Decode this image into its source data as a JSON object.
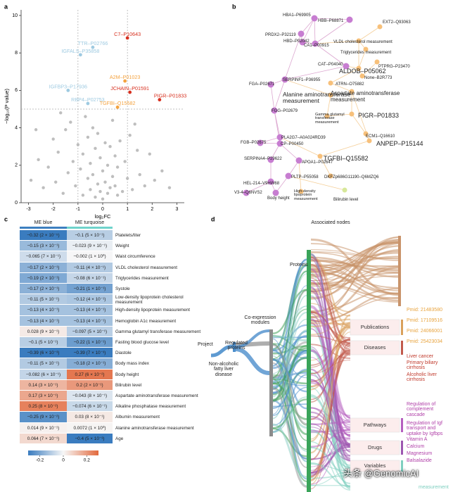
{
  "panel_labels": [
    "a",
    "b",
    "c",
    "d"
  ],
  "chart_data": [
    {
      "type": "scatter",
      "xlabel": "log₂FC",
      "ylabel": "−log₁₀(P value)",
      "xlim": [
        -3.3,
        3.3
      ],
      "ylim": [
        0,
        10.3
      ],
      "xticks": [
        -3,
        -2,
        -1,
        0,
        1,
        2,
        3
      ],
      "yticks": [
        0,
        2,
        4,
        6,
        8,
        10
      ],
      "vlines": [
        -1,
        1
      ],
      "hline": 5.0,
      "series": [
        {
          "color": "#b3b3b3",
          "x": [
            -2.9,
            -2.6,
            -2.4,
            -2.2,
            -2.0,
            -1.9,
            -1.8,
            -1.6,
            -1.5,
            -1.4,
            -1.3,
            -1.2,
            -1.1,
            -1.0,
            -0.9,
            -0.8,
            -0.8,
            -0.7,
            -0.6,
            -0.6,
            -0.5,
            -0.5,
            -0.4,
            -0.4,
            -0.3,
            -0.3,
            -0.2,
            -0.2,
            -0.1,
            -0.1,
            0,
            0,
            0.1,
            0.1,
            0.2,
            0.2,
            0.3,
            0.3,
            0.4,
            0.4,
            0.5,
            0.5,
            0.6,
            0.7,
            0.8,
            0.9,
            1.0,
            1.1,
            1.2,
            1.4,
            1.5,
            1.7,
            1.9,
            2.1,
            2.4,
            2.7,
            -2.7,
            -1.7,
            1.3,
            0.6
          ],
          "values": [
            1.2,
            2.3,
            0.8,
            1.9,
            3.4,
            1.1,
            2.7,
            0.5,
            3.9,
            1.6,
            4.3,
            2.2,
            0.9,
            3.1,
            1.8,
            0.4,
            2.6,
            4.6,
            1.3,
            3.5,
            0.7,
            2.1,
            4.0,
            1.5,
            0.3,
            2.9,
            1.0,
            3.7,
            0.6,
            2.4,
            1.7,
            0.2,
            3.2,
            1.1,
            0.5,
            2.0,
            3.0,
            0.8,
            1.4,
            4.4,
            2.5,
            0.9,
            1.9,
            3.3,
            0.6,
            2.2,
            1.3,
            3.6,
            0.7,
            2.8,
            1.5,
            0.9,
            2.6,
            1.2,
            1.7,
            0.8,
            3.9,
            4.8,
            4.2,
            0.4
          ]
        },
        {
          "labels": [
            "C7–P10643",
            "TTR–P02766",
            "IGFALS–P35858",
            "A2M–P01023",
            "IGFBP3–P17936",
            "JCHAIN–P01591",
            "RBP4–P02753",
            "PIGR–P01833",
            "TGFBI–Q15582"
          ],
          "colors": [
            "#d7301f",
            "#9ecae1",
            "#9ecae1",
            "#f4a340",
            "#9ecae1",
            "#d7301f",
            "#9ecae1",
            "#d7301f",
            "#f4a340"
          ],
          "x": [
            1.0,
            -0.4,
            -0.9,
            0.9,
            -1.4,
            1.1,
            -0.6,
            2.3,
            0.6
          ],
          "values": [
            8.8,
            8.3,
            7.9,
            6.5,
            6.0,
            5.9,
            5.3,
            5.5,
            5.1
          ]
        }
      ]
    },
    {
      "type": "heatmap",
      "categories": [
        "Platelets/liter",
        "Weight",
        "Waist circumference",
        "VLDL cholesterol measurement",
        "Triglycerides measurement",
        "Systole",
        "Low-density lipoprotein cholesterol measurement",
        "High-density lipoprotein measurement",
        "Hemoglobin A1c measurement",
        "Gamma glutamyl transferase measurement",
        "Fasting blood glucose level",
        "Diastole",
        "Body mass index",
        "Body height",
        "Bilirubin level",
        "Aspartate aminotransferase measurement",
        "Alkaline phosphatase measurement",
        "Albumin measurement",
        "Alanine aminotransferase measurement",
        "Age"
      ],
      "series": [
        {
          "name": "ME blue",
          "color": "#3d7fc0",
          "values": [
            -0.32,
            -0.15,
            -0.065,
            -0.17,
            -0.19,
            -0.17,
            -0.11,
            -0.13,
            -0.13,
            0.028,
            -0.1,
            -0.39,
            -0.11,
            -0.082,
            0.14,
            0.17,
            0.25,
            -0.25,
            0.014,
            0.064
          ],
          "value_labels": [
            "−0.32 (2 × 10⁻⁵)",
            "−0.15 (3 × 10⁻¹)",
            "−0.065 (7 × 10⁻¹)",
            "−0.17 (2 × 10⁻¹)",
            "−0.19 (2 × 10⁻¹)",
            "−0.17 (2 × 10⁻¹)",
            "−0.11 (5 × 10⁻¹)",
            "−0.13 (4 × 10⁻¹)",
            "−0.13 (4 × 10⁻¹)",
            "0.028 (9 × 10⁻¹)",
            "−0.1 (5 × 10⁻¹)",
            "−0.39 (6 × 10⁻³)",
            "−0.11 (5 × 10⁻¹)",
            "−0.082 (6 × 10⁻¹)",
            "0.14 (3 × 10⁻¹)",
            "0.17 (3 × 10⁻¹)",
            "0.25 (8 × 10⁻²)",
            "−0.25 (9 × 10⁻²)",
            "0.014 (9 × 10⁻¹)",
            "0.064 (7 × 10⁻¹)"
          ]
        },
        {
          "name": "ME turquoise",
          "color": "#6fd3cb",
          "values": [
            -0.1,
            -0.023,
            -0.002,
            -0.11,
            -0.08,
            -0.21,
            -0.12,
            -0.13,
            -0.13,
            -0.097,
            -0.22,
            -0.39,
            -0.18,
            0.27,
            0.2,
            -0.043,
            -0.074,
            0.03,
            0.0072,
            -0.4
          ],
          "value_labels": [
            "−0.1 (5 × 10⁻¹)",
            "−0.023 (9 × 10⁻¹)",
            "−0.002 (1 × 10⁰)",
            "−0.11 (4 × 10⁻¹)",
            "−0.08 (6 × 10⁻¹)",
            "−0.21 (1 × 10⁻¹)",
            "−0.12 (4 × 10⁻¹)",
            "−0.13 (4 × 10⁻¹)",
            "−0.13 (4 × 10⁻¹)",
            "−0.097 (5 × 10⁻¹)",
            "−0.22 (1 × 10⁻¹)",
            "−0.39 (7 × 10⁻³)",
            "−0.18 (2 × 10⁻¹)",
            "0.27 (6 × 10⁻²)",
            "0.2 (2 × 10⁻¹)",
            "−0.043 (8 × 10⁻¹)",
            "−0.074 (6 × 10⁻¹)",
            "0.03 (8 × 10⁻¹)",
            "0.0072 (1 × 10⁰)",
            "−0.4 (5 × 10⁻³)"
          ]
        }
      ],
      "clim": [
        -0.3,
        0.3
      ],
      "cticks": [
        -0.2,
        0,
        0.2
      ],
      "colors": [
        "#3a7cbf",
        "#f7f7f7",
        "#e2693d"
      ]
    }
  ],
  "network": {
    "nodes": [
      {
        "label": "HBA1–P69905",
        "color": "#c77dd1"
      },
      {
        "label": "HBB–P68871",
        "color": "#c77dd1"
      },
      {
        "label": "PRDX2–P32119",
        "color": "#c77dd1"
      },
      {
        "label": "HBD–P02042",
        "color": "#c77dd1"
      },
      {
        "label": "CA1–P00915",
        "color": "#c77dd1"
      },
      {
        "label": "EXT2–Q93063",
        "color": "#f7c07a"
      },
      {
        "label": "VLDL cholesterol measurement",
        "color": "#f7c07a"
      },
      {
        "label": "Triglycerides measurement",
        "color": "#f7c07a"
      },
      {
        "label": "CAT–P04040",
        "color": "#c77dd1"
      },
      {
        "label": "ALDOB–P05062",
        "color": "#f7c07a"
      },
      {
        "label": "PTPRG–P23470",
        "color": "#f7c07a"
      },
      {
        "label": "None–B2R773",
        "color": "#f7c07a"
      },
      {
        "label": "SERPINF1–P36955",
        "color": "#c77dd1"
      },
      {
        "label": "FGA–P02671",
        "color": "#c77dd1"
      },
      {
        "label": "ATRN–O75882",
        "color": "#f7c07a"
      },
      {
        "label": "Alanine aminotransferase measurement",
        "color": "#f7c07a"
      },
      {
        "label": "Aspartate aminotransferase measurement",
        "color": "#f7c07a"
      },
      {
        "label": "FGG–P02679",
        "color": "#c77dd1"
      },
      {
        "label": "Gamma glutamyl transferase measurement",
        "color": "#f7c07a"
      },
      {
        "label": "PIGR–P01833",
        "color": "#f7c07a"
      },
      {
        "label": "ECM1–Q16610",
        "color": "#f7c07a"
      },
      {
        "label": "ANPEP–P15144",
        "color": "#f7c07a"
      },
      {
        "label": "PLA2G7–A0A024RD39",
        "color": "#c77dd1"
      },
      {
        "label": "FGB–P02675",
        "color": "#c77dd1"
      },
      {
        "label": "CP–P00450",
        "color": "#c77dd1"
      },
      {
        "label": "SERPINA4–P29622",
        "color": "#c77dd1"
      },
      {
        "label": "TGFBI–Q15582",
        "color": "#f7c07a"
      },
      {
        "label": "APOA1–P02647",
        "color": "#c77dd1"
      },
      {
        "label": "HEL-214–V9HW68",
        "color": "#c77dd1"
      },
      {
        "label": "PLTP–P55058",
        "color": "#c77dd1"
      },
      {
        "label": "DKFZp686G11190–Q6MZQ6",
        "color": "#f7c07a"
      },
      {
        "label": "V3-4–Q6NVS2",
        "color": "#c77dd1"
      },
      {
        "label": "Body height",
        "color": "#c77dd1"
      },
      {
        "label": "High-density lipoprotein measurement",
        "color": "#f7c07a"
      },
      {
        "label": "Bilirubin level",
        "color": "#d7e89a"
      }
    ]
  },
  "sankey": {
    "stages": [
      "Associated nodes",
      "Proteins",
      "Co-expression modules",
      "Regulated proteins",
      "Project",
      "Non-alcoholic fatty liver disease"
    ],
    "groups": [
      {
        "label": "Publications",
        "color": "#d9a05b"
      },
      {
        "label": "Diseases",
        "color": "#c25a4c"
      },
      {
        "label": "Pathways",
        "color": "#b55fbf"
      },
      {
        "label": "Drugs",
        "color": "#9d56b0"
      },
      {
        "label": "Variables",
        "color": "#7fcfc0"
      }
    ],
    "items": [
      {
        "text": "Pmid: 21483580",
        "color": "#e8a33d"
      },
      {
        "text": "Pmid: 17109516",
        "color": "#e8a33d"
      },
      {
        "text": "Pmid: 24066001",
        "color": "#e8a33d"
      },
      {
        "text": "Pmid: 25423034",
        "color": "#e8a33d"
      },
      {
        "text": "Liver cancer",
        "color": "#c0392b"
      },
      {
        "text": "Primary biliary cirrhosis",
        "color": "#c0392b"
      },
      {
        "text": "Alcoholic liver cirrhosis",
        "color": "#c0392b"
      },
      {
        "text": "Regulation of complement cascade",
        "color": "#b03fa8"
      },
      {
        "text": "Regulation of Igf transport and uptake by Igfbps",
        "color": "#b03fa8"
      },
      {
        "text": "Vitamin A",
        "color": "#b03fa8"
      },
      {
        "text": "Calcium",
        "color": "#b03fa8"
      },
      {
        "text": "Magnesium",
        "color": "#b03fa8"
      },
      {
        "text": "Balsalazide",
        "color": "#b03fa8"
      },
      {
        "text": "measurement",
        "color": "#7fcfc0"
      }
    ]
  },
  "watermark": "头条 @GenomicAI"
}
